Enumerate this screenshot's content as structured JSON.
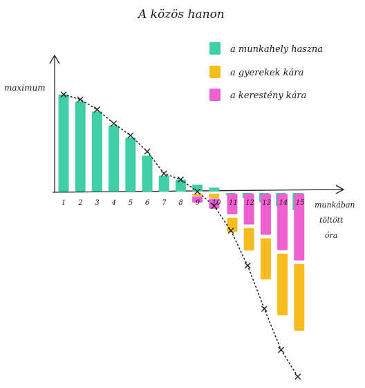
{
  "chart_data": {
    "type": "bar",
    "title": "A közös hanon",
    "ylabel": "maximum",
    "xlabel": [
      "munkában",
      "töltött",
      "óra"
    ],
    "categories": [
      "1",
      "2",
      "3",
      "4",
      "5",
      "6",
      "7",
      "8",
      "9",
      "10",
      "11",
      "12",
      "13",
      "14",
      "15"
    ],
    "series": [
      {
        "name": "a munkahely haszna",
        "color": "#3fcfa6",
        "values": [
          97,
          90,
          80,
          66,
          54,
          36,
          16,
          12,
          7,
          4,
          -2,
          -5,
          -9,
          -13,
          -17
        ]
      },
      {
        "name": "a gyerekek kára",
        "color": "#f7bd1f",
        "values": [
          0,
          0,
          0,
          0,
          0,
          0,
          0,
          0,
          -2,
          -4,
          -14,
          -22,
          -40,
          -60,
          -65
        ]
      },
      {
        "name": "a kerestény kára",
        "color": "#ee5fd0",
        "values": [
          0,
          0,
          0,
          0,
          0,
          0,
          0,
          0,
          -6,
          -10,
          -20,
          -30,
          -40,
          -55,
          -65
        ]
      }
    ],
    "net_curve": [
      97,
      92,
      82,
      68,
      56,
      40,
      18,
      12,
      0,
      -14,
      -38,
      -72,
      -114,
      -154,
      -180
    ],
    "ylim": [
      -185,
      105
    ],
    "grid": false,
    "legend": "top-right"
  }
}
